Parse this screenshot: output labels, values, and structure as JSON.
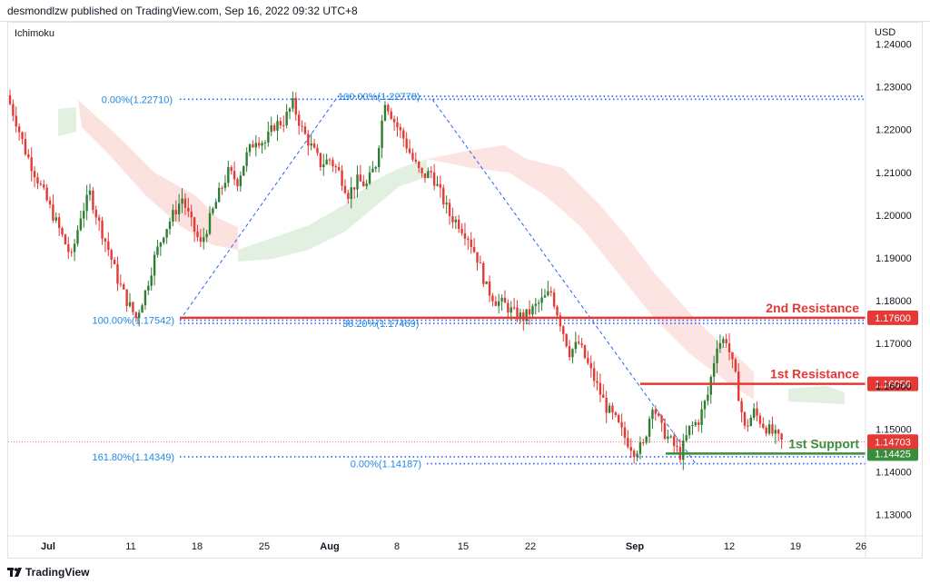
{
  "header": {
    "publish_line": "desmondlzw published on TradingView.com, Sep 16, 2022 09:32 UTC+8"
  },
  "indicator_label": "Ichimoku",
  "currency_label": "USD",
  "footer": {
    "brand": "TradingView"
  },
  "colors": {
    "up": "#26a69a",
    "down": "#ef5350",
    "up_candle": "#2e7d32",
    "down_candle": "#e53935",
    "resistance": "#e53935",
    "support": "#388e3c",
    "fib": "#2962ff",
    "fib_text": "#1e88e5",
    "cloud_red": "#fbd5d2",
    "cloud_green": "#d9ecd9"
  },
  "chart_data": {
    "type": "candlestick",
    "y_axis": {
      "min": 1.125,
      "max": 1.245,
      "ticks": [
        "1.24000",
        "1.23000",
        "1.22000",
        "1.21000",
        "1.20000",
        "1.19000",
        "1.18000",
        "1.17000",
        "1.16000",
        "1.15000",
        "1.14000",
        "1.13000"
      ]
    },
    "x_axis": {
      "labels": [
        "Jul",
        "11",
        "18",
        "25",
        "Aug",
        "8",
        "15",
        "22",
        "Sep",
        "12",
        "19",
        "26"
      ]
    },
    "last_price": {
      "label": "1.14703",
      "value": 1.14703
    },
    "levels": [
      {
        "label": "2nd Resistance",
        "value": 1.176,
        "price_label": "1.17600",
        "kind": "resistance"
      },
      {
        "label": "1st Resistance",
        "value": 1.16056,
        "price_label": "1.16056",
        "kind": "resistance"
      },
      {
        "label": "1st Support",
        "value": 1.14425,
        "price_label": "1.14425",
        "kind": "support"
      }
    ],
    "fib_levels": [
      {
        "label": "0.00%(1.22710)",
        "value": 1.2271
      },
      {
        "label": "100.00%(1.22778)",
        "value": 1.22778
      },
      {
        "label": "100.00%(1.17542)",
        "value": 1.17542
      },
      {
        "label": "38.20%(1.17469)",
        "value": 1.17469
      },
      {
        "label": "161.80%(1.14349)",
        "value": 1.14349
      },
      {
        "label": "0.00%(1.14187)",
        "value": 1.14187
      }
    ],
    "price_path": [
      1.228,
      1.222,
      1.215,
      1.21,
      1.205,
      1.2,
      1.195,
      1.19,
      1.2,
      1.205,
      1.198,
      1.192,
      1.185,
      1.18,
      1.176,
      1.182,
      1.19,
      1.196,
      1.2,
      1.204,
      1.198,
      1.193,
      1.199,
      1.205,
      1.21,
      1.208,
      1.214,
      1.218,
      1.217,
      1.221,
      1.222,
      1.226,
      1.22,
      1.216,
      1.212,
      1.213,
      1.21,
      1.205,
      1.208,
      1.207,
      1.212,
      1.227,
      1.222,
      1.218,
      1.213,
      1.209,
      1.21,
      1.205,
      1.2,
      1.198,
      1.195,
      1.19,
      1.183,
      1.18,
      1.179,
      1.177,
      1.176,
      1.178,
      1.18,
      1.182,
      1.175,
      1.168,
      1.17,
      1.165,
      1.16,
      1.155,
      1.152,
      1.148,
      1.145,
      1.146,
      1.156,
      1.15,
      1.147,
      1.144,
      1.15,
      1.152,
      1.158,
      1.17,
      1.171,
      1.162,
      1.15,
      1.154,
      1.151,
      1.149,
      1.147
    ]
  }
}
